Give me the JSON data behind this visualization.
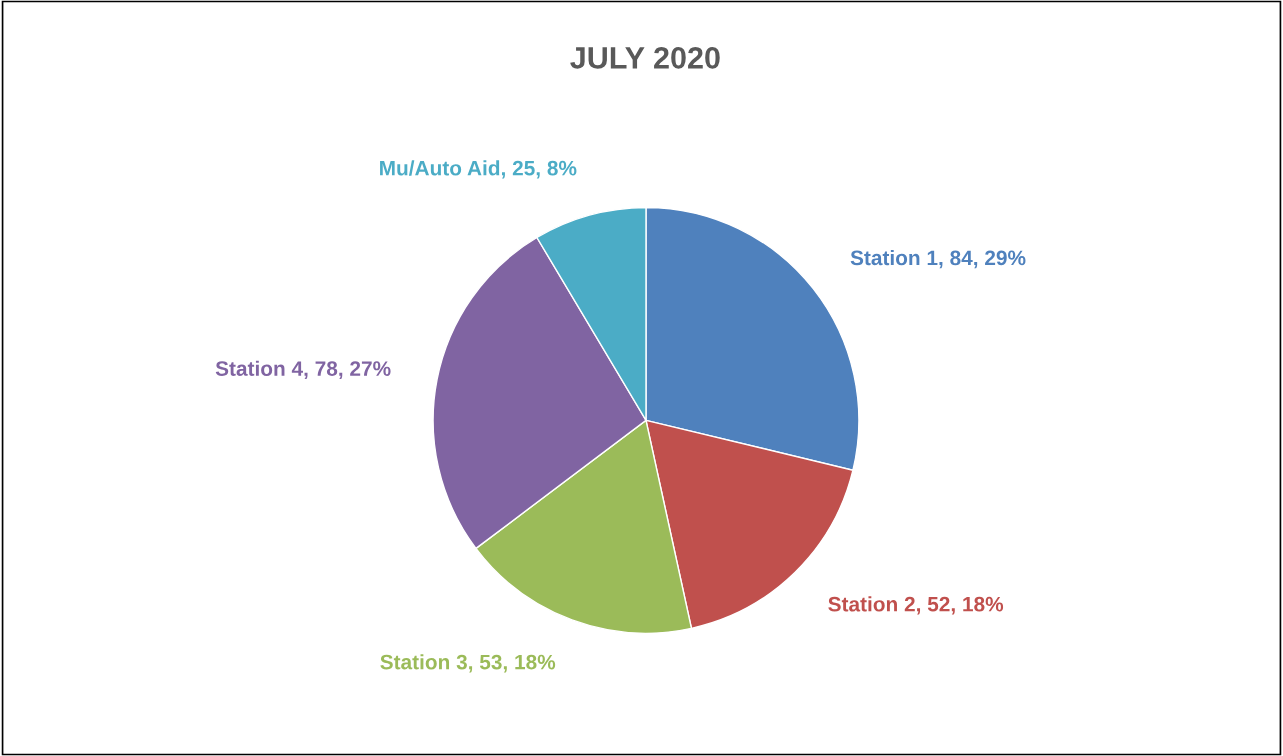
{
  "chart_data": {
    "type": "pie",
    "title": "JULY 2020",
    "categories": [
      "Station 1",
      "Station 2",
      "Station 3",
      "Station 4",
      "Mu/Auto Aid"
    ],
    "values": [
      84,
      52,
      53,
      78,
      25
    ],
    "value_labels": [
      "84, 29%",
      "52, 18%",
      "53, 18%",
      "78, 27%",
      "25, 8%"
    ],
    "colors": [
      "#4f81bd",
      "#c0504d",
      "#9bbb59",
      "#8064a2",
      "#4bacc6"
    ],
    "legend": false
  }
}
